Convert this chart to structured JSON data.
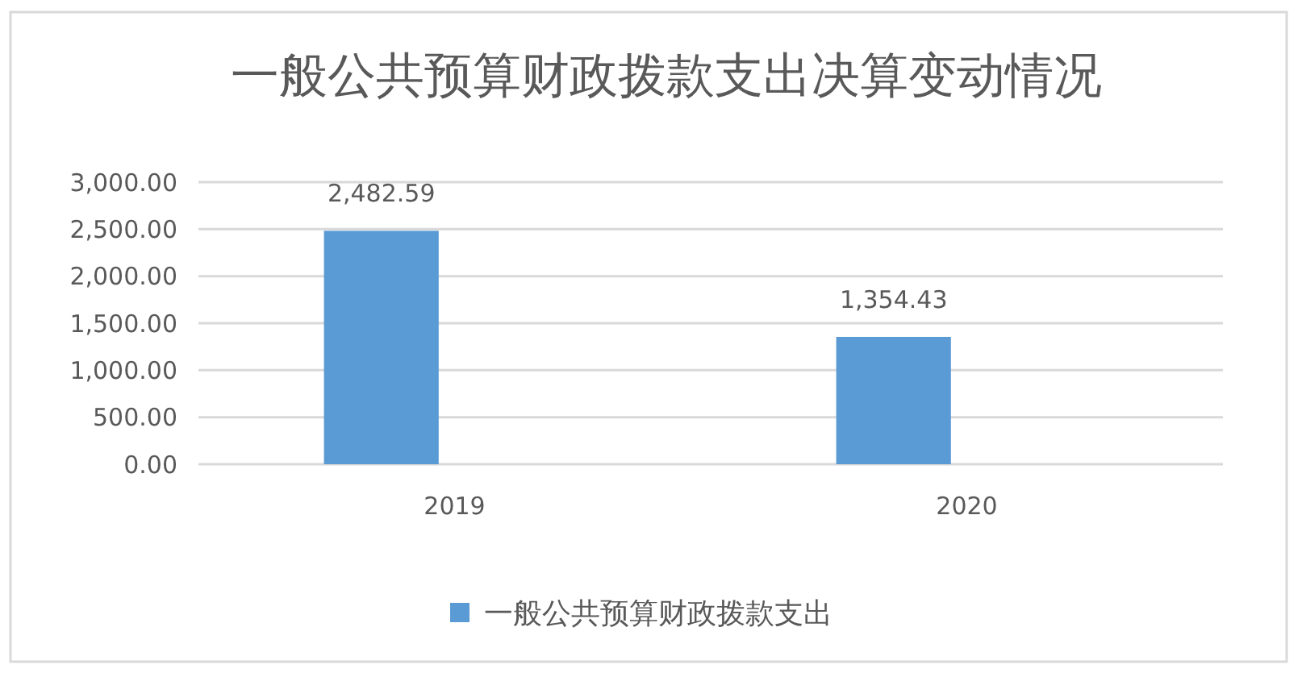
{
  "chart_data": {
    "type": "bar",
    "title": "一般公共预算财政拨款支出决算变动情况",
    "categories": [
      "2019",
      "2020"
    ],
    "series": [
      {
        "name": "一般公共预算财政拨款支出",
        "color": "#5b9bd5",
        "values": [
          2482.59,
          1354.43
        ],
        "value_labels": [
          "2,482.59",
          "1,354.43"
        ]
      }
    ],
    "ylim": [
      0,
      3000
    ],
    "yticks": [
      {
        "value": 0,
        "label": "0.00"
      },
      {
        "value": 500,
        "label": "500.00"
      },
      {
        "value": 1000,
        "label": "1,000.00"
      },
      {
        "value": 1500,
        "label": "1,500.00"
      },
      {
        "value": 2000,
        "label": "2,000.00"
      },
      {
        "value": 2500,
        "label": "2,500.00"
      },
      {
        "value": 3000,
        "label": "3,000.00"
      }
    ],
    "grid": "y",
    "legend": "bottom"
  }
}
